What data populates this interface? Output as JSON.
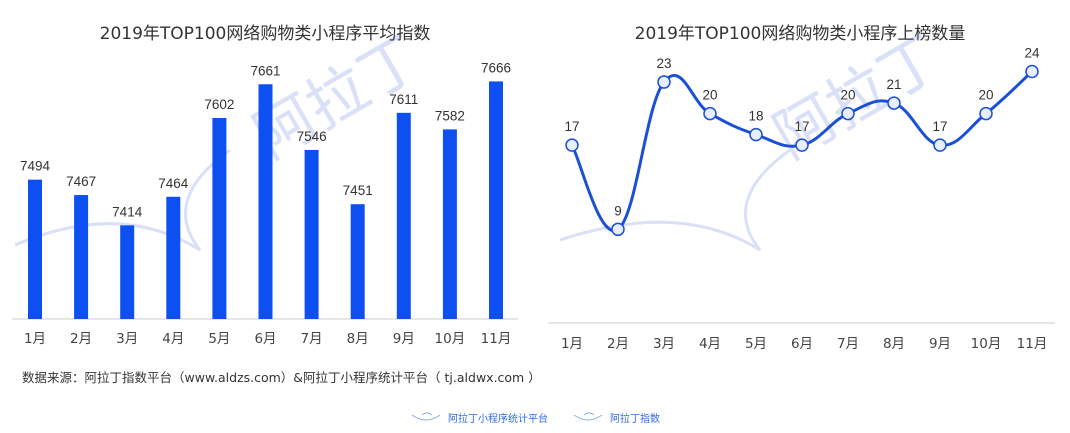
{
  "chart_data": [
    {
      "type": "bar",
      "title": "2019年TOP100网络购物类小程序平均指数",
      "categories": [
        "1月",
        "2月",
        "3月",
        "4月",
        "5月",
        "6月",
        "7月",
        "8月",
        "9月",
        "10月",
        "11月"
      ],
      "values": [
        7494,
        7467,
        7414,
        7464,
        7602,
        7661,
        7546,
        7451,
        7611,
        7582,
        7666
      ],
      "xlabel": "",
      "ylabel": "",
      "ylim": [
        7250,
        7700
      ],
      "color": "#0d4ff0",
      "grid": false
    },
    {
      "type": "line",
      "title": "2019年TOP100网络购物类小程序上榜数量",
      "categories": [
        "1月",
        "2月",
        "3月",
        "4月",
        "5月",
        "6月",
        "7月",
        "8月",
        "9月",
        "10月",
        "11月"
      ],
      "values": [
        17,
        9,
        23,
        20,
        18,
        17,
        20,
        21,
        17,
        20,
        24
      ],
      "xlabel": "",
      "ylabel": "",
      "ylim": [
        0,
        25
      ],
      "color": "#1a4fd6",
      "grid": false
    }
  ],
  "source": "数据来源：阿拉丁指数平台（www.aldzs.com）&阿拉丁小程序统计平台（ tj.aldwx.com ）",
  "footer": {
    "logo1": "阿拉丁小程序统计平台",
    "logo2": "阿拉丁指数"
  },
  "watermark": "阿拉丁"
}
